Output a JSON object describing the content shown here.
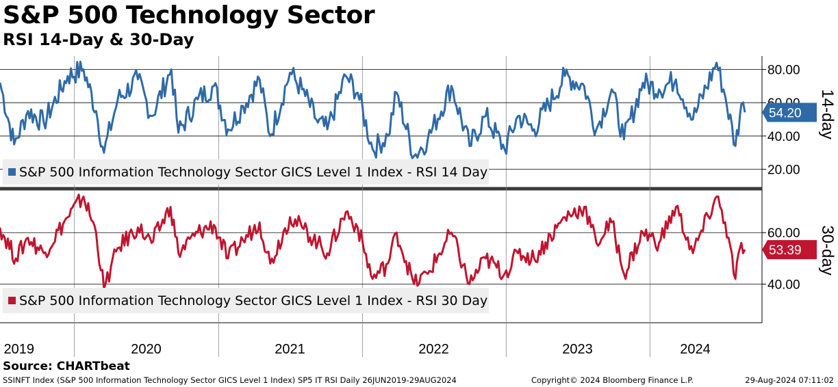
{
  "header": {
    "title": "S&P 500 Technology Sector",
    "subtitle": "RSI 14-Day & 30-Day"
  },
  "footer": {
    "source": "Source: CHARTbeat",
    "description": "SSINFT Index (S&P 500 Information Technology Sector GICS Level 1 Index) SP5 IT RSI  Daily 26JUN2019-29AUG2024",
    "copyright": "Copyright© 2024 Bloomberg Finance L.P.",
    "timestamp": "29-Aug-2024 07:11:02"
  },
  "chart_data": [
    {
      "type": "line",
      "panel": "top",
      "axis_title": "14-day",
      "legend": {
        "label": "S&P 500 Information Technology Sector GICS Level 1 Index - RSI 14 Day",
        "position": "bottom-left"
      },
      "ylim": [
        10,
        88
      ],
      "yticks": [
        20,
        40,
        60,
        80
      ],
      "ytick_labels": [
        "20.00",
        "40.00",
        "60.00",
        "80.00"
      ],
      "last_value_label": "54.20",
      "color": "#2e6aa8",
      "x_start": "2019-06-26",
      "x_end": "2024-08-29",
      "grid": true,
      "series": [
        {
          "x": [
            "2019-06-26",
            "2019-08-01",
            "2019-09-05",
            "2019-10-15",
            "2019-12-15",
            "2020-01-24",
            "2020-02-25",
            "2020-03-16",
            "2020-04-20",
            "2020-06-10",
            "2020-07-15",
            "2020-09-03",
            "2020-09-21",
            "2020-11-09",
            "2020-12-20",
            "2021-01-25",
            "2021-03-04",
            "2021-04-15",
            "2021-05-12",
            "2021-07-01",
            "2021-08-01",
            "2021-09-10",
            "2021-10-04",
            "2021-11-20",
            "2021-12-20",
            "2022-01-27",
            "2022-03-07",
            "2022-03-29",
            "2022-05-12",
            "2022-06-16",
            "2022-08-15",
            "2022-09-30",
            "2022-11-10",
            "2022-12-28",
            "2023-01-31",
            "2023-03-13",
            "2023-05-30",
            "2023-07-18",
            "2023-08-18",
            "2023-09-26",
            "2023-10-27",
            "2023-12-14",
            "2024-01-24",
            "2024-03-07",
            "2024-04-19",
            "2024-06-18",
            "2024-07-10",
            "2024-08-05",
            "2024-08-20",
            "2024-08-29"
          ],
          "values": [
            72,
            35,
            55,
            48,
            76,
            80,
            55,
            30,
            62,
            74,
            52,
            80,
            42,
            62,
            70,
            44,
            58,
            74,
            40,
            78,
            68,
            48,
            44,
            76,
            66,
            32,
            40,
            66,
            28,
            38,
            70,
            34,
            52,
            32,
            52,
            44,
            76,
            70,
            44,
            68,
            38,
            72,
            68,
            74,
            50,
            84,
            64,
            34,
            59,
            54.2
          ]
        }
      ]
    },
    {
      "type": "line",
      "panel": "bottom",
      "axis_title": "30-day",
      "legend": {
        "label": "S&P 500 Information Technology Sector GICS Level 1 Index - RSI 30 Day",
        "position": "bottom-left"
      },
      "ylim": [
        25,
        76
      ],
      "yticks": [
        40,
        60
      ],
      "ytick_labels": [
        "40.00",
        "60.00"
      ],
      "last_value_label": "53.39",
      "color": "#c0152f",
      "x_start": "2019-06-26",
      "x_end": "2024-08-29",
      "grid": true,
      "series": [
        {
          "x": [
            "2019-06-26",
            "2019-08-05",
            "2019-09-05",
            "2019-10-15",
            "2019-12-15",
            "2020-01-24",
            "2020-02-25",
            "2020-03-16",
            "2020-04-20",
            "2020-06-10",
            "2020-07-15",
            "2020-09-01",
            "2020-09-21",
            "2020-11-09",
            "2020-12-20",
            "2021-01-25",
            "2021-03-04",
            "2021-04-15",
            "2021-05-12",
            "2021-07-01",
            "2021-08-01",
            "2021-09-10",
            "2021-10-04",
            "2021-11-20",
            "2021-12-20",
            "2022-01-27",
            "2022-03-07",
            "2022-03-29",
            "2022-05-12",
            "2022-06-16",
            "2022-08-15",
            "2022-09-30",
            "2022-11-10",
            "2022-12-28",
            "2023-01-31",
            "2023-03-13",
            "2023-05-30",
            "2023-07-18",
            "2023-08-18",
            "2023-09-26",
            "2023-10-27",
            "2023-12-14",
            "2024-01-24",
            "2024-03-07",
            "2024-04-19",
            "2024-06-18",
            "2024-07-10",
            "2024-08-05",
            "2024-08-20",
            "2024-08-29"
          ],
          "values": [
            62,
            50,
            58,
            52,
            66,
            74,
            60,
            38,
            54,
            62,
            56,
            70,
            52,
            60,
            63,
            50,
            57,
            64,
            48,
            66,
            62,
            56,
            52,
            68,
            62,
            42,
            48,
            60,
            40,
            44,
            60,
            40,
            50,
            44,
            52,
            50,
            66,
            70,
            56,
            64,
            44,
            60,
            56,
            70,
            52,
            74,
            64,
            42,
            56,
            53.39
          ]
        }
      ]
    }
  ],
  "x_axis": {
    "year_labels": [
      "2019",
      "2020",
      "2021",
      "2022",
      "2023",
      "2024"
    ]
  },
  "colors": {
    "rsi14": "#2e6aa8",
    "rsi30": "#c0152f",
    "legend_bg": "#eeeeee",
    "divider": "#3a3a3a"
  }
}
